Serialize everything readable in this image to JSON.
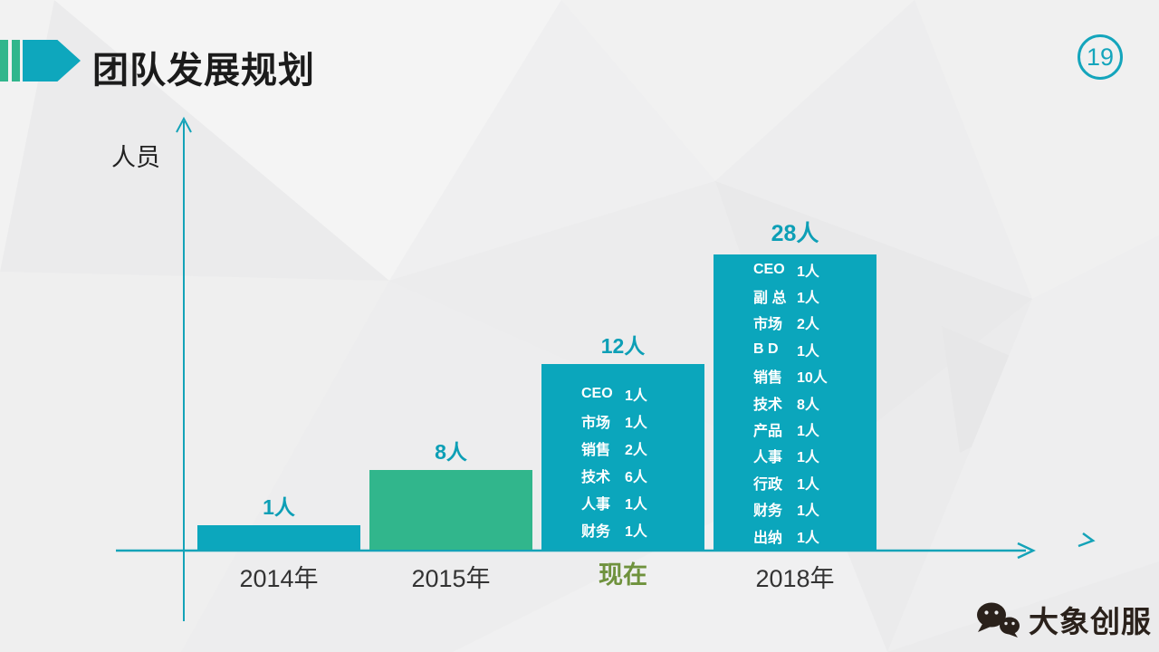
{
  "slide": {
    "title": "团队发展规划",
    "page_number": "19"
  },
  "chart": {
    "y_axis_label": "人员",
    "bars": [
      {
        "category": "2014年",
        "value": 1,
        "value_label": "1人",
        "color": "#0ca7bd",
        "breakdown": []
      },
      {
        "category": "2015年",
        "value": 8,
        "value_label": "8人",
        "color": "#31b68c",
        "breakdown": []
      },
      {
        "category": "现在",
        "value": 12,
        "value_label": "12人",
        "color": "#0ba6bc",
        "breakdown": [
          {
            "role": "CEO",
            "count": "1人"
          },
          {
            "role": "市场",
            "count": "1人"
          },
          {
            "role": "销售",
            "count": "2人"
          },
          {
            "role": "技术",
            "count": "6人"
          },
          {
            "role": "人事",
            "count": "1人"
          },
          {
            "role": "财务",
            "count": "1人"
          }
        ]
      },
      {
        "category": "2018年",
        "value": 28,
        "value_label": "28人",
        "color": "#0ba6bc",
        "breakdown": [
          {
            "role": "CEO",
            "count": "1人"
          },
          {
            "role": "副 总",
            "count": "1人"
          },
          {
            "role": "市场",
            "count": "2人"
          },
          {
            "role": "B D",
            "count": "1人"
          },
          {
            "role": "销售",
            "count": "10人"
          },
          {
            "role": "技术",
            "count": "8人"
          },
          {
            "role": "产品",
            "count": "1人"
          },
          {
            "role": "人事",
            "count": "1人"
          },
          {
            "role": "行政",
            "count": "1人"
          },
          {
            "role": "财务",
            "count": "1人"
          },
          {
            "role": "出纳",
            "count": "1人"
          }
        ]
      }
    ]
  },
  "chart_data": {
    "type": "bar",
    "title": "团队发展规划",
    "xlabel": "",
    "ylabel": "人员",
    "categories": [
      "2014年",
      "2015年",
      "现在",
      "2018年"
    ],
    "values": [
      1,
      8,
      12,
      28
    ],
    "value_labels": [
      "1人",
      "8人",
      "12人",
      "28人"
    ],
    "bar_colors": [
      "#0ca7bd",
      "#31b68c",
      "#0ba6bc",
      "#0ba6bc"
    ],
    "grid": "off",
    "legend": "none",
    "breakdowns": {
      "现在": {
        "CEO": 1,
        "市场": 1,
        "销售": 2,
        "技术": 6,
        "人事": 1,
        "财务": 1
      },
      "2018年": {
        "CEO": 1,
        "副总": 1,
        "市场": 2,
        "BD": 1,
        "销售": 10,
        "技术": 8,
        "产品": 1,
        "人事": 1,
        "行政": 1,
        "财务": 1,
        "出纳": 1
      }
    }
  },
  "footer": {
    "brand_name": "大象创服"
  },
  "colors": {
    "teal": "#0ca7bd",
    "green": "#31b68c",
    "olive": "#6f923d",
    "axis": "#14a3b8"
  }
}
